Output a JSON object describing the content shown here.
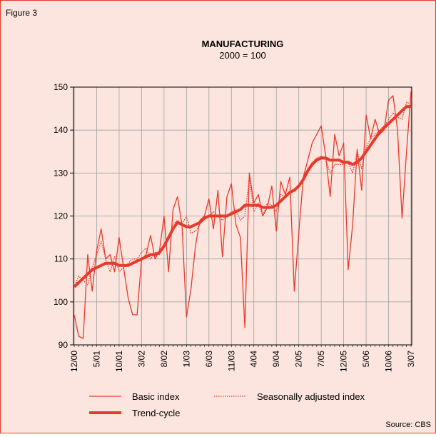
{
  "chart_data": {
    "type": "line",
    "figure_label": "Figure 3",
    "title": "MANUFACTURING",
    "subtitle": "2000 = 100",
    "source": "Source: CBS",
    "categories": [
      "12/00",
      null,
      null,
      null,
      null,
      "5/01",
      null,
      null,
      null,
      null,
      "10/01",
      null,
      null,
      null,
      null,
      "3/02",
      null,
      null,
      null,
      null,
      "8/02",
      null,
      null,
      null,
      null,
      "1/03",
      null,
      null,
      null,
      null,
      "6/03",
      null,
      null,
      null,
      null,
      "11/03",
      null,
      null,
      null,
      null,
      "4/04",
      null,
      null,
      null,
      null,
      "9/04",
      null,
      null,
      null,
      null,
      "2/05",
      null,
      null,
      null,
      null,
      "7/05",
      null,
      null,
      null,
      null,
      "12/05",
      null,
      null,
      null,
      null,
      "5/06",
      null,
      null,
      null,
      null,
      "10/06",
      null,
      null,
      null,
      null,
      "3/07"
    ],
    "series": [
      {
        "name": "Basic index",
        "color": "#e8392a",
        "style": "solid",
        "width": 1.3,
        "values": [
          97,
          92,
          91.5,
          111,
          102.5,
          112,
          117,
          110,
          111,
          107,
          115,
          108,
          101,
          97,
          97,
          110,
          111,
          115.5,
          110,
          112,
          120,
          107,
          121.5,
          124.5,
          118,
          96.5,
          103,
          113,
          119,
          120,
          124,
          117,
          126,
          110.5,
          124.5,
          127.5,
          118,
          115,
          94,
          130,
          123,
          125,
          120,
          122,
          127,
          116.5,
          128,
          125,
          129,
          102.5,
          116,
          129,
          133,
          137,
          139,
          141,
          134,
          124.5,
          139,
          134,
          137,
          107.5,
          118,
          135.5,
          126,
          143.5,
          138,
          142.5,
          139,
          140,
          147,
          148,
          140,
          119.5,
          135,
          149
        ]
      },
      {
        "name": "Seasonally adjusted index",
        "color": "#e8392a",
        "style": "dotted",
        "width": 1.3,
        "values": [
          103.5,
          106,
          105,
          104,
          108,
          111,
          114,
          110,
          107,
          110.5,
          107,
          108,
          109,
          110,
          110,
          111.5,
          112.5,
          110,
          111.5,
          111,
          113,
          115,
          118,
          119,
          118,
          120,
          116,
          116.5,
          118,
          120,
          120,
          121,
          120,
          119,
          120,
          121,
          121.5,
          119,
          120,
          129,
          121,
          123,
          120,
          123,
          122.5,
          121,
          125,
          124.5,
          125.5,
          126,
          127,
          128,
          131,
          132.5,
          133.5,
          134,
          133,
          130,
          132,
          132,
          132,
          132.5,
          130,
          135,
          131,
          136,
          138,
          139,
          140,
          141,
          142.5,
          144,
          143,
          142.5,
          146.5,
          146
        ]
      },
      {
        "name": "Trend-cycle",
        "color": "#e8392a",
        "style": "solid",
        "width": 4,
        "values": [
          103.5,
          104.5,
          105.5,
          106.5,
          107.5,
          108,
          108.5,
          109,
          109,
          109,
          108.5,
          108.5,
          108.5,
          109,
          109.5,
          110,
          110.5,
          111,
          111,
          111.5,
          113,
          115,
          117,
          118.5,
          118,
          117.5,
          117.5,
          118,
          118.5,
          119.5,
          120,
          120,
          120,
          120,
          120,
          120.5,
          121,
          121.5,
          122.5,
          122.5,
          122.5,
          122.5,
          122,
          122,
          122,
          122.5,
          123.5,
          124.5,
          125.5,
          126,
          127,
          128.5,
          130.5,
          132,
          133,
          133.5,
          133.5,
          133,
          133,
          133,
          132.5,
          132.5,
          132,
          132.5,
          133.5,
          135,
          136.5,
          138,
          139.5,
          140.5,
          141.5,
          142.5,
          143.5,
          144.5,
          145.5,
          145.5
        ]
      }
    ],
    "ylim": [
      90,
      150
    ],
    "yticks": [
      90,
      100,
      110,
      120,
      130,
      140,
      150
    ],
    "grid": true,
    "legend": "bottom"
  }
}
